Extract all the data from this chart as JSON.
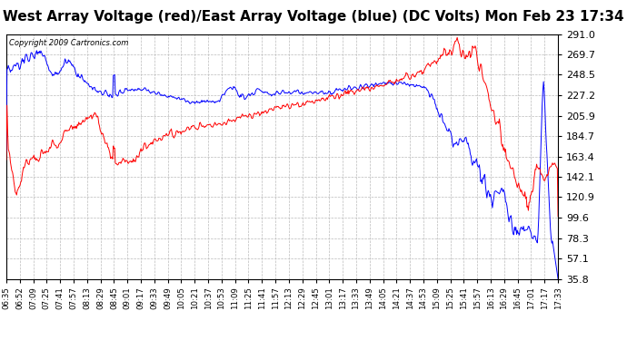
{
  "title": "West Array Voltage (red)/East Array Voltage (blue) (DC Volts) Mon Feb 23 17:34",
  "copyright": "Copyright 2009 Cartronics.com",
  "title_fontsize": 11,
  "background_color": "#ffffff",
  "plot_bg_color": "#ffffff",
  "grid_color": "#bbbbbb",
  "ylim": [
    35.8,
    291.0
  ],
  "yticks": [
    35.8,
    57.1,
    78.3,
    99.6,
    120.9,
    142.1,
    163.4,
    184.7,
    205.9,
    227.2,
    248.5,
    269.7,
    291.0
  ],
  "x_labels": [
    "06:35",
    "06:52",
    "07:09",
    "07:25",
    "07:41",
    "07:57",
    "08:13",
    "08:29",
    "08:45",
    "09:01",
    "09:17",
    "09:33",
    "09:49",
    "10:05",
    "10:21",
    "10:37",
    "10:53",
    "11:09",
    "11:25",
    "11:41",
    "11:57",
    "12:13",
    "12:29",
    "12:45",
    "13:01",
    "13:17",
    "13:33",
    "13:49",
    "14:05",
    "14:21",
    "14:37",
    "14:53",
    "15:09",
    "15:25",
    "15:41",
    "15:57",
    "16:13",
    "16:29",
    "16:45",
    "17:01",
    "17:17",
    "17:33"
  ],
  "red_color": "#ff0000",
  "blue_color": "#0000ff"
}
